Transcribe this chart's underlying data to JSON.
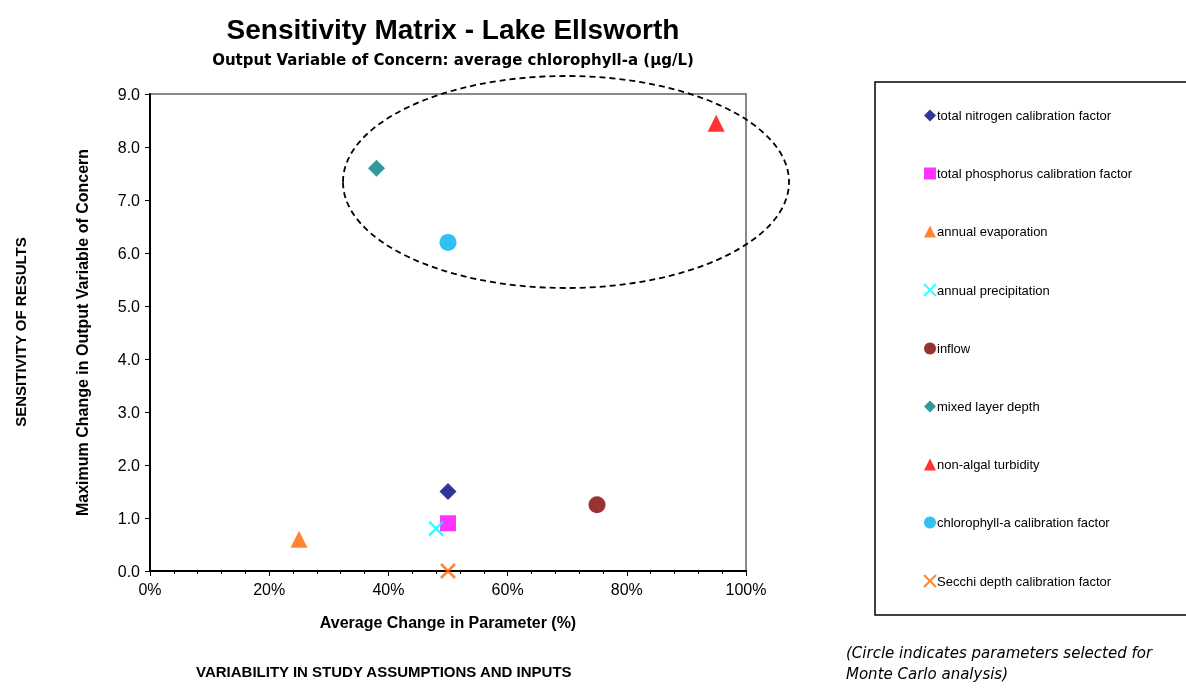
{
  "chart_data": {
    "type": "scatter",
    "title": "Sensitivity Matrix - Lake Ellsworth",
    "subtitle": "Output Variable of Concern: average chlorophyll-a (µg/L)",
    "xlabel": "Average Change in Parameter (%)",
    "ylabel": "Maximum Change in Output Variable of Concern",
    "annotations": [
      "VARIABILITY IN STUDY ASSUMPTIONS AND INPUTS",
      "SENSITIVITY OF RESULTS",
      "(Circle indicates parameters selected for Monte Carlo analysis)"
    ],
    "xlim": [
      0,
      100
    ],
    "xticks": [
      {
        "value": 0,
        "label": "0%"
      },
      {
        "value": 20,
        "label": "20%"
      },
      {
        "value": 40,
        "label": "40%"
      },
      {
        "value": 60,
        "label": "60%"
      },
      {
        "value": 80,
        "label": "80%"
      },
      {
        "value": 100,
        "label": "100%"
      }
    ],
    "ylim": [
      0,
      9
    ],
    "yticks": [
      {
        "value": 0,
        "label": "0.0"
      },
      {
        "value": 1,
        "label": "1.0"
      },
      {
        "value": 2,
        "label": "2.0"
      },
      {
        "value": 3,
        "label": "3.0"
      },
      {
        "value": 4,
        "label": "4.0"
      },
      {
        "value": 5,
        "label": "5.0"
      },
      {
        "value": 6,
        "label": "6.0"
      },
      {
        "value": 7,
        "label": "7.0"
      },
      {
        "value": 8,
        "label": "8.0"
      },
      {
        "value": 9,
        "label": "9.0"
      }
    ],
    "grid": false,
    "legend": "right",
    "series": [
      {
        "name": "total nitrogen calibration factor",
        "color": "#000080",
        "marker": "diamond",
        "x": [
          50
        ],
        "values": [
          1.5
        ]
      },
      {
        "name": "total phosphorus calibration factor",
        "color": "#ff00ff",
        "marker": "square",
        "x": [
          50
        ],
        "values": [
          0.9
        ]
      },
      {
        "name": "annual evaporation",
        "color": "#ff6600",
        "marker": "triangle",
        "x": [
          25
        ],
        "values": [
          0.6
        ]
      },
      {
        "name": "annual precipitation",
        "color": "#00ffff",
        "marker": "cross",
        "x": [
          48
        ],
        "values": [
          0.8
        ]
      },
      {
        "name": "inflow",
        "color": "#800000",
        "marker": "circle",
        "x": [
          75
        ],
        "values": [
          1.25
        ]
      },
      {
        "name": "mixed layer depth",
        "color": "#008080",
        "marker": "diamond",
        "x": [
          38
        ],
        "values": [
          7.6
        ]
      },
      {
        "name": "non-algal turbidity",
        "color": "#ff0000",
        "marker": "triangle",
        "x": [
          95
        ],
        "values": [
          8.45
        ]
      },
      {
        "name": "chlorophyll-a calibration factor",
        "color": "#00b0f0",
        "marker": "circle",
        "x": [
          50
        ],
        "values": [
          6.2
        ]
      },
      {
        "name": "Secchi depth calibration factor",
        "color": "#ff6600",
        "marker": "cross",
        "x": [
          50
        ],
        "values": [
          0
        ]
      }
    ]
  }
}
